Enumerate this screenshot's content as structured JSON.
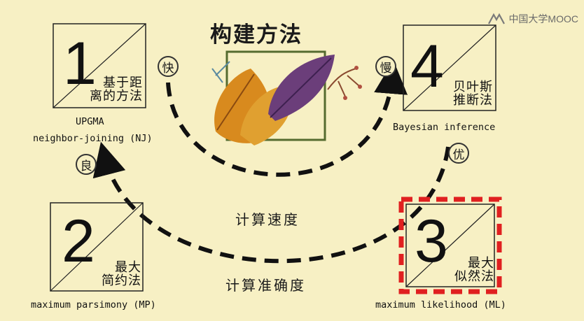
{
  "watermark": "中国大学MOOC",
  "title": "构建方法",
  "methods": [
    {
      "number": "1",
      "name_cn": [
        "基于距",
        "离的方法"
      ],
      "labels": [
        "UPGMA",
        "neighbor-joining (NJ)"
      ]
    },
    {
      "number": "2",
      "name_cn": [
        "最大",
        "简约法"
      ],
      "labels": [
        "maximum parsimony (MP)"
      ]
    },
    {
      "number": "3",
      "name_cn": [
        "最大",
        "似然法"
      ],
      "labels": [
        "maximum likelihood (ML)"
      ]
    },
    {
      "number": "4",
      "name_cn": [
        "贝叶斯",
        "推断法"
      ],
      "labels": [
        "Bayesian inference"
      ]
    }
  ],
  "badges": {
    "fast": "快",
    "slow": "慢",
    "good": "良",
    "best": "优"
  },
  "axis_labels": {
    "speed": "计算速度",
    "accuracy": "计算准确度"
  },
  "colors": {
    "background": "#f7f0c4",
    "highlight": "#e02020",
    "frame": "#556b2f"
  }
}
